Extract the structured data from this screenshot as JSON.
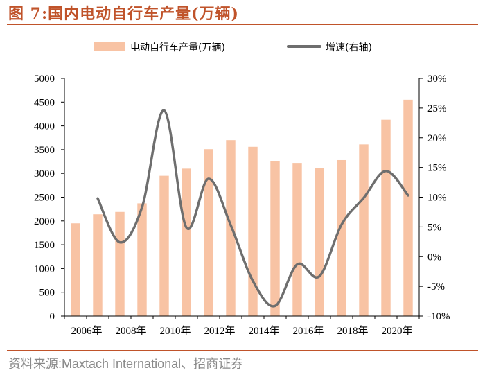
{
  "figure": {
    "title": "图 7:国内电动自行车产量(万辆)",
    "source": "资料来源:Maxtach International、招商证券"
  },
  "colors": {
    "title": "#C0532A",
    "bar": "#F8C3A4",
    "line": "#6E6E6E",
    "rule": "#C0532A",
    "source": "#8A8A8A"
  },
  "chart_data": {
    "type": "bar+line",
    "years": [
      2006,
      2007,
      2008,
      2009,
      2010,
      2011,
      2012,
      2013,
      2014,
      2015,
      2016,
      2017,
      2018,
      2019,
      2020,
      2021
    ],
    "x_tick_labels": [
      "2006年",
      "2008年",
      "2010年",
      "2012年",
      "2014年",
      "2016年",
      "2018年",
      "2020年"
    ],
    "series": [
      {
        "name": "电动自行车产量(万辆)",
        "type": "bar",
        "axis": "left",
        "values": [
          1950,
          2140,
          2190,
          2370,
          2950,
          3100,
          3510,
          3700,
          3560,
          3260,
          3220,
          3110,
          3280,
          3610,
          4130,
          4550
        ]
      },
      {
        "name": "增速(右轴)",
        "type": "line",
        "axis": "right",
        "values": [
          null,
          9.8,
          2.4,
          8.3,
          24.6,
          4.9,
          13.1,
          5.3,
          -4.1,
          -8.3,
          -1.3,
          -3.3,
          5.4,
          9.9,
          14.4,
          10.3
        ]
      }
    ],
    "y_left": {
      "min": 0,
      "max": 5000,
      "step": 500,
      "tick_labels": [
        "0",
        "500",
        "1000",
        "1500",
        "2000",
        "2500",
        "3000",
        "3500",
        "4000",
        "4500",
        "5000"
      ]
    },
    "y_right": {
      "min": -10,
      "max": 30,
      "step": 5,
      "tick_labels": [
        "-10%",
        "-5%",
        "0%",
        "5%",
        "10%",
        "15%",
        "20%",
        "25%",
        "30%"
      ]
    },
    "legend": {
      "position": "top",
      "bar_label": "电动自行车产量(万辆)",
      "line_label": "增速(右轴)"
    },
    "grid": false
  }
}
